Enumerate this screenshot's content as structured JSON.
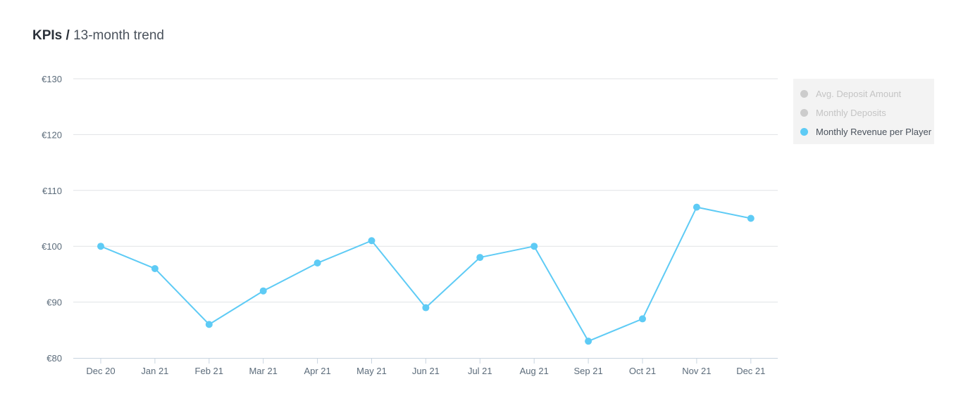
{
  "header": {
    "title_strong": "KPIs /",
    "title_rest": "13-month trend"
  },
  "legend": {
    "items": [
      {
        "label": "Avg. Deposit Amount",
        "color": "#cccccc",
        "active": false
      },
      {
        "label": "Monthly Deposits",
        "color": "#cccccc",
        "active": false
      },
      {
        "label": "Monthly Revenue per Player",
        "color": "#5ecbf5",
        "active": true
      }
    ]
  },
  "chart_data": {
    "type": "line",
    "title": "",
    "xlabel": "",
    "ylabel": "",
    "categories": [
      "Dec 20",
      "Jan 21",
      "Feb 21",
      "Mar 21",
      "Apr 21",
      "May 21",
      "Jun 21",
      "Jul 21",
      "Aug 21",
      "Sep 21",
      "Oct 21",
      "Nov 21",
      "Dec 21"
    ],
    "series": [
      {
        "name": "Monthly Revenue per Player",
        "color": "#5ecbf5",
        "values": [
          100,
          96,
          86,
          92,
          97,
          101,
          89,
          98,
          100,
          83,
          87,
          107,
          105
        ]
      }
    ],
    "ylim": [
      80,
      130
    ],
    "yticks": [
      80,
      90,
      100,
      110,
      120,
      130
    ],
    "ytick_prefix": "€",
    "grid": true,
    "legend_position": "top-right"
  }
}
